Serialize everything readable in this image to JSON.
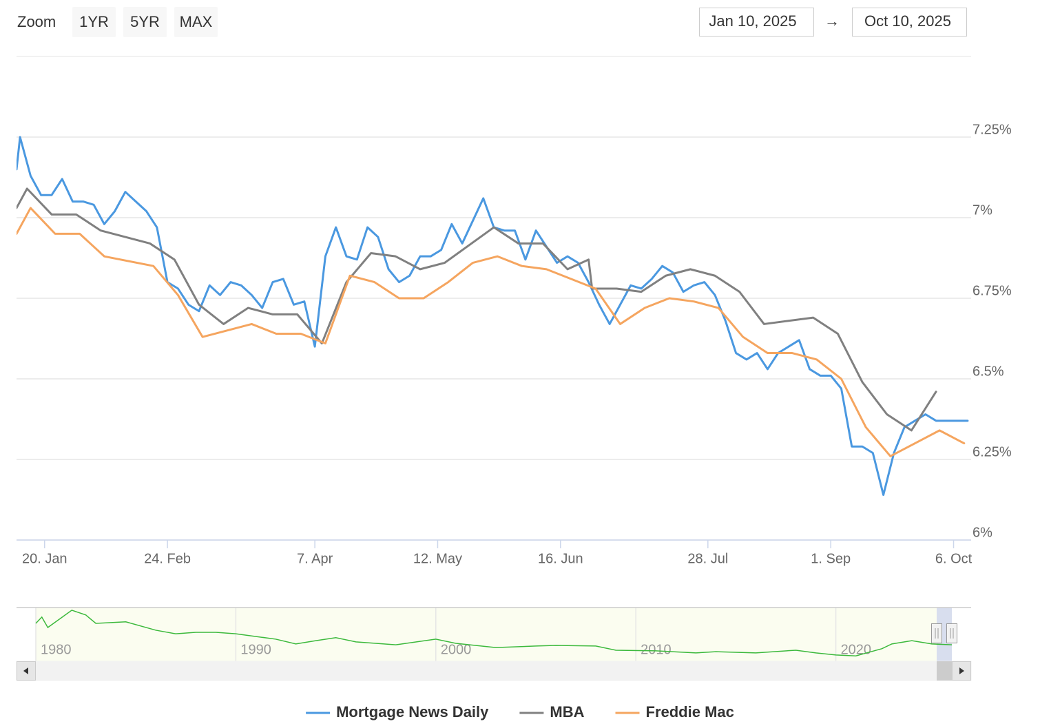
{
  "range_selector": {
    "label": "Zoom",
    "buttons": [
      "1YR",
      "5YR",
      "MAX"
    ],
    "from": "Jan 10, 2025",
    "separator": "→",
    "to": "Oct 10, 2025"
  },
  "chart_data": [
    {
      "type": "line",
      "xlim": [
        "2025-01-12",
        "2025-10-11"
      ],
      "xticks": [
        {
          "value": "2025-01-20",
          "label": "20. Jan"
        },
        {
          "value": "2025-02-24",
          "label": "24. Feb"
        },
        {
          "value": "2025-04-07",
          "label": "7. Apr"
        },
        {
          "value": "2025-05-12",
          "label": "12. May"
        },
        {
          "value": "2025-06-16",
          "label": "16. Jun"
        },
        {
          "value": "2025-07-28",
          "label": "28. Jul"
        },
        {
          "value": "2025-09-01",
          "label": "1. Sep"
        },
        {
          "value": "2025-10-06",
          "label": "6. Oct"
        }
      ],
      "ylim": [
        6,
        7.5
      ],
      "yticks": [
        {
          "value": 6,
          "label": "6%"
        },
        {
          "value": 6.25,
          "label": "6.25%"
        },
        {
          "value": 6.5,
          "label": "6.5%"
        },
        {
          "value": 6.75,
          "label": "6.75%"
        },
        {
          "value": 7,
          "label": "7%"
        },
        {
          "value": 7.25,
          "label": "7.25%"
        }
      ],
      "grid": true,
      "legend": "bottom",
      "series": [
        {
          "name": "Mortgage News Daily",
          "color": "#4a98e0",
          "x": [
            "2025-01-12",
            "2025-01-13",
            "2025-01-16",
            "2025-01-19",
            "2025-01-22",
            "2025-01-25",
            "2025-01-28",
            "2025-01-31",
            "2025-02-03",
            "2025-02-06",
            "2025-02-09",
            "2025-02-12",
            "2025-02-15",
            "2025-02-18",
            "2025-02-21",
            "2025-02-24",
            "2025-02-27",
            "2025-03-02",
            "2025-03-05",
            "2025-03-08",
            "2025-03-11",
            "2025-03-14",
            "2025-03-17",
            "2025-03-20",
            "2025-03-23",
            "2025-03-26",
            "2025-03-29",
            "2025-04-01",
            "2025-04-04",
            "2025-04-07",
            "2025-04-10",
            "2025-04-13",
            "2025-04-16",
            "2025-04-19",
            "2025-04-22",
            "2025-04-25",
            "2025-04-28",
            "2025-05-01",
            "2025-05-04",
            "2025-05-07",
            "2025-05-10",
            "2025-05-13",
            "2025-05-16",
            "2025-05-19",
            "2025-05-22",
            "2025-05-25",
            "2025-05-28",
            "2025-05-31",
            "2025-06-03",
            "2025-06-06",
            "2025-06-09",
            "2025-06-12",
            "2025-06-15",
            "2025-06-18",
            "2025-06-21",
            "2025-06-24",
            "2025-06-27",
            "2025-06-30",
            "2025-07-03",
            "2025-07-06",
            "2025-07-09",
            "2025-07-12",
            "2025-07-15",
            "2025-07-18",
            "2025-07-21",
            "2025-07-24",
            "2025-07-27",
            "2025-07-30",
            "2025-08-02",
            "2025-08-05",
            "2025-08-08",
            "2025-08-11",
            "2025-08-14",
            "2025-08-17",
            "2025-08-20",
            "2025-08-23",
            "2025-08-26",
            "2025-08-29",
            "2025-09-01",
            "2025-09-04",
            "2025-09-07",
            "2025-09-10",
            "2025-09-13",
            "2025-09-16",
            "2025-09-19",
            "2025-09-22",
            "2025-09-25",
            "2025-09-28",
            "2025-10-01",
            "2025-10-04",
            "2025-10-07",
            "2025-10-10"
          ],
          "values": [
            7.15,
            7.25,
            7.13,
            7.07,
            7.07,
            7.12,
            7.05,
            7.05,
            7.04,
            6.98,
            7.02,
            7.08,
            7.05,
            7.02,
            6.97,
            6.8,
            6.78,
            6.73,
            6.71,
            6.79,
            6.76,
            6.8,
            6.79,
            6.76,
            6.72,
            6.8,
            6.81,
            6.73,
            6.74,
            6.6,
            6.88,
            6.97,
            6.88,
            6.87,
            6.97,
            6.94,
            6.84,
            6.8,
            6.82,
            6.88,
            6.88,
            6.9,
            6.98,
            6.92,
            6.99,
            7.06,
            6.97,
            6.96,
            6.96,
            6.87,
            6.96,
            6.91,
            6.86,
            6.88,
            6.86,
            6.8,
            6.73,
            6.67,
            6.73,
            6.79,
            6.78,
            6.81,
            6.85,
            6.83,
            6.77,
            6.79,
            6.8,
            6.76,
            6.68,
            6.58,
            6.56,
            6.58,
            6.53,
            6.58,
            6.6,
            6.62,
            6.53,
            6.51,
            6.51,
            6.47,
            6.29,
            6.29,
            6.27,
            6.14,
            6.27,
            6.35,
            6.37,
            6.39,
            6.37,
            6.37,
            6.37,
            6.37
          ]
        },
        {
          "name": "MBA",
          "color": "#808080",
          "x": [
            "2025-01-12",
            "2025-01-15",
            "2025-01-22",
            "2025-01-29",
            "2025-02-05",
            "2025-02-19",
            "2025-02-26",
            "2025-03-05",
            "2025-03-12",
            "2025-03-19",
            "2025-03-26",
            "2025-04-02",
            "2025-04-09",
            "2025-04-16",
            "2025-04-23",
            "2025-04-30",
            "2025-05-07",
            "2025-05-14",
            "2025-05-28",
            "2025-06-04",
            "2025-06-11",
            "2025-06-18",
            "2025-06-24",
            "2025-06-25",
            "2025-07-02",
            "2025-07-09",
            "2025-07-16",
            "2025-07-23",
            "2025-07-30",
            "2025-08-06",
            "2025-08-13",
            "2025-08-27",
            "2025-09-03",
            "2025-09-10",
            "2025-09-17",
            "2025-09-24",
            "2025-10-01"
          ],
          "values": [
            7.03,
            7.09,
            7.01,
            7.01,
            6.96,
            6.92,
            6.87,
            6.73,
            6.67,
            6.72,
            6.7,
            6.7,
            6.61,
            6.8,
            6.89,
            6.88,
            6.84,
            6.86,
            6.97,
            6.92,
            6.92,
            6.84,
            6.87,
            6.78,
            6.78,
            6.77,
            6.82,
            6.84,
            6.82,
            6.77,
            6.67,
            6.69,
            6.64,
            6.49,
            6.39,
            6.34,
            6.46
          ]
        },
        {
          "name": "Freddie Mac",
          "color": "#f5a55f",
          "x": [
            "2025-01-12",
            "2025-01-16",
            "2025-01-23",
            "2025-01-30",
            "2025-02-06",
            "2025-02-20",
            "2025-02-27",
            "2025-03-06",
            "2025-03-20",
            "2025-03-27",
            "2025-04-03",
            "2025-04-10",
            "2025-04-17",
            "2025-04-24",
            "2025-05-01",
            "2025-05-08",
            "2025-05-15",
            "2025-05-22",
            "2025-05-29",
            "2025-06-05",
            "2025-06-12",
            "2025-06-26",
            "2025-07-03",
            "2025-07-10",
            "2025-07-17",
            "2025-07-24",
            "2025-07-31",
            "2025-08-07",
            "2025-08-14",
            "2025-08-21",
            "2025-08-28",
            "2025-09-04",
            "2025-09-11",
            "2025-09-18",
            "2025-10-02",
            "2025-10-09"
          ],
          "values": [
            6.95,
            7.03,
            6.95,
            6.95,
            6.88,
            6.85,
            6.76,
            6.63,
            6.67,
            6.64,
            6.64,
            6.61,
            6.82,
            6.8,
            6.75,
            6.75,
            6.8,
            6.86,
            6.88,
            6.85,
            6.84,
            6.78,
            6.67,
            6.72,
            6.75,
            6.74,
            6.72,
            6.63,
            6.58,
            6.58,
            6.56,
            6.5,
            6.35,
            6.26,
            6.34,
            6.3
          ]
        }
      ]
    },
    {
      "type": "navigator",
      "color": "#3cb93c",
      "xlim": [
        1980,
        2025.8
      ],
      "xticks": [
        1980,
        1990,
        2000,
        2010,
        2020
      ],
      "ylim": [
        1,
        19
      ],
      "x": [
        1980,
        1980.3,
        1980.6,
        1981.8,
        1982.5,
        1983,
        1984.5,
        1986,
        1987,
        1988,
        1989,
        1990,
        1992,
        1993,
        1994,
        1995,
        1996,
        1998,
        2000,
        2001,
        2003,
        2005,
        2006,
        2008,
        2009,
        2011,
        2013,
        2014,
        2016,
        2018,
        2019,
        2020,
        2021,
        2022.3,
        2022.8,
        2023.8,
        2024.8,
        2025.8
      ],
      "values": [
        13.7,
        15.8,
        12.3,
        18.1,
        16.5,
        13.7,
        14.2,
        11.4,
        10.2,
        10.7,
        10.7,
        10.2,
        8.4,
        6.8,
        7.9,
        8.9,
        7.5,
        6.5,
        8.4,
        7.0,
        5.6,
        6.1,
        6.3,
        6.1,
        4.7,
        4.5,
        3.8,
        4.2,
        3.8,
        4.7,
        3.8,
        3.1,
        2.8,
        5.2,
        6.8,
        7.9,
        6.8,
        6.5
      ]
    }
  ]
}
